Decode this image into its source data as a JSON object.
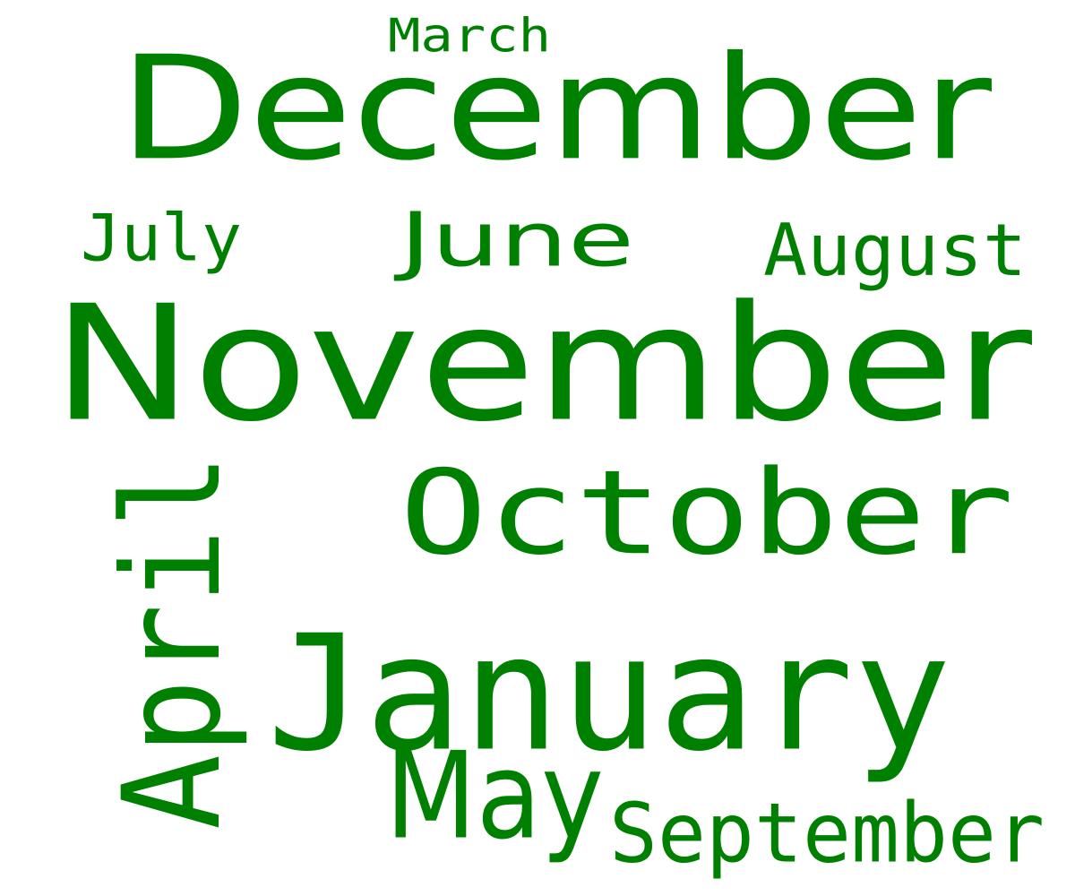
{
  "word_color": "#008000",
  "background_color": "#ffffff",
  "words": {
    "march": "March",
    "december": "December",
    "july": "July",
    "june": "June",
    "august": "August",
    "november": "November",
    "april": "April",
    "october": "October",
    "january": "January",
    "may": "May",
    "september": "September"
  }
}
